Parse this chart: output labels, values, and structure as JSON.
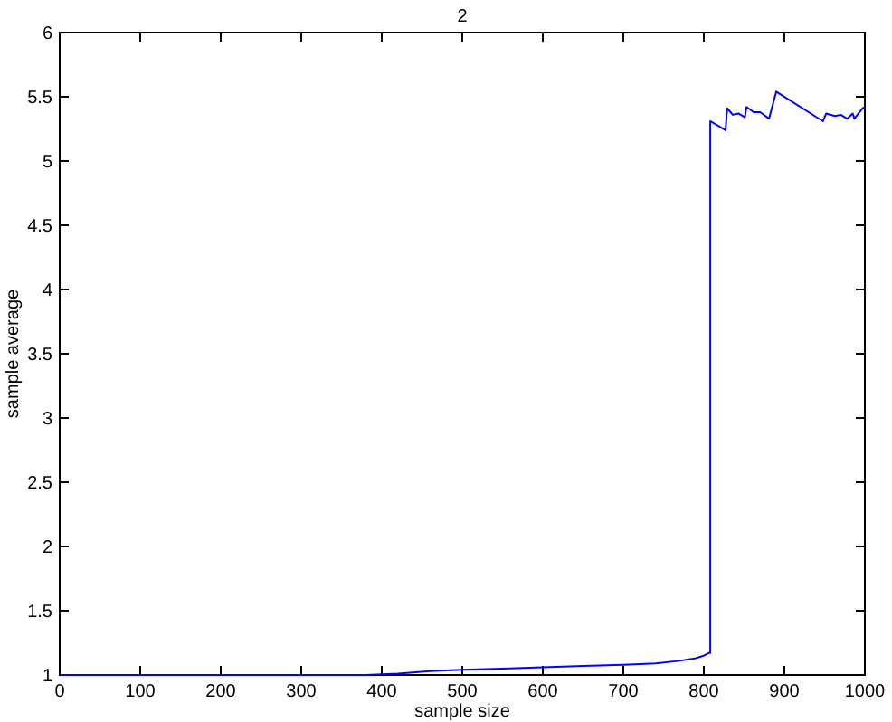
{
  "chart_data": {
    "type": "line",
    "title": "2",
    "xlabel": "sample size",
    "ylabel": "sample average",
    "xlim": [
      0,
      1000
    ],
    "ylim": [
      1,
      6
    ],
    "xticks": [
      0,
      100,
      200,
      300,
      400,
      500,
      600,
      700,
      800,
      900,
      1000
    ],
    "yticks": [
      1,
      1.5,
      2,
      2.5,
      3,
      3.5,
      4,
      4.5,
      5,
      5.5,
      6
    ],
    "grid": false,
    "marker": "none",
    "line_style": "solid",
    "series": [
      {
        "color": "#0000ff",
        "x": [
          1,
          380,
          420,
          460,
          500,
          550,
          600,
          650,
          700,
          740,
          770,
          790,
          800,
          806,
          808,
          808,
          827,
          829,
          836,
          843,
          851,
          853,
          862,
          870,
          881,
          890,
          948,
          952,
          963,
          970,
          978,
          985,
          987,
          997,
          1000
        ],
        "values": [
          1,
          1.0,
          1.01,
          1.03,
          1.04,
          1.05,
          1.06,
          1.07,
          1.08,
          1.09,
          1.11,
          1.13,
          1.15,
          1.17,
          1.17,
          5.31,
          5.24,
          5.41,
          5.36,
          5.37,
          5.34,
          5.42,
          5.38,
          5.38,
          5.33,
          5.54,
          5.31,
          5.37,
          5.35,
          5.36,
          5.33,
          5.37,
          5.33,
          5.41,
          5.42
        ]
      }
    ]
  }
}
